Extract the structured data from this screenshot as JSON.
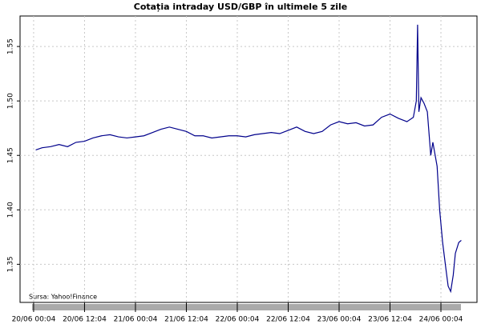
{
  "chart_data": {
    "type": "line",
    "title": "Cotația intraday USD/GBP în ultimele 5 zile",
    "annotation": "Sursa: Yahoo!Finance",
    "x": [
      0.5,
      2,
      4,
      6,
      8,
      10,
      12,
      14,
      16,
      18,
      20,
      22,
      24,
      26,
      28,
      30,
      32,
      34,
      36,
      38,
      40,
      42,
      44,
      46,
      48,
      50,
      52,
      54,
      56,
      58,
      60,
      62,
      64,
      66,
      68,
      70,
      72,
      74,
      76,
      78,
      80,
      82,
      84,
      86,
      88,
      89.5,
      90.2,
      90.5,
      90.8,
      91.3,
      92,
      92.8,
      93.6,
      94.1,
      95.1,
      95.7,
      96.4,
      97.2,
      97.7,
      98.3,
      98.9,
      99.4,
      100.2,
      100.8
    ],
    "series": [
      {
        "name": "USD/GBP",
        "color": "#00008b",
        "values": [
          1.455,
          1.457,
          1.458,
          1.46,
          1.458,
          1.462,
          1.463,
          1.466,
          1.468,
          1.469,
          1.467,
          1.466,
          1.467,
          1.468,
          1.471,
          1.474,
          1.476,
          1.474,
          1.472,
          1.468,
          1.468,
          1.466,
          1.467,
          1.468,
          1.468,
          1.467,
          1.469,
          1.47,
          1.471,
          1.47,
          1.473,
          1.476,
          1.472,
          1.47,
          1.472,
          1.478,
          1.481,
          1.479,
          1.48,
          1.477,
          1.478,
          1.485,
          1.488,
          1.484,
          1.481,
          1.485,
          1.5,
          1.57,
          1.49,
          1.503,
          1.498,
          1.49,
          1.45,
          1.462,
          1.44,
          1.4,
          1.37,
          1.345,
          1.33,
          1.325,
          1.34,
          1.36,
          1.37,
          1.372
        ]
      }
    ],
    "xlim": [
      -3.2,
      104.5
    ],
    "xticks": [
      {
        "value": 0,
        "label": "20/06 00:04"
      },
      {
        "value": 12,
        "label": "20/06 12:04"
      },
      {
        "value": 24,
        "label": "21/06 00:04"
      },
      {
        "value": 36,
        "label": "21/06 12:04"
      },
      {
        "value": 48,
        "label": "22/06 00:04"
      },
      {
        "value": 60,
        "label": "22/06 12:04"
      },
      {
        "value": 72,
        "label": "23/06 00:04"
      },
      {
        "value": 84,
        "label": "23/06 12:04"
      },
      {
        "value": 96,
        "label": "24/06 00:04"
      }
    ],
    "ylim": [
      1.315,
      1.578
    ],
    "yticks": [
      1.35,
      {
        "value": 1.4,
        "label": "1.40"
      },
      1.45,
      {
        "value": 1.5,
        "label": "1.50"
      },
      1.55
    ],
    "grid": true
  }
}
